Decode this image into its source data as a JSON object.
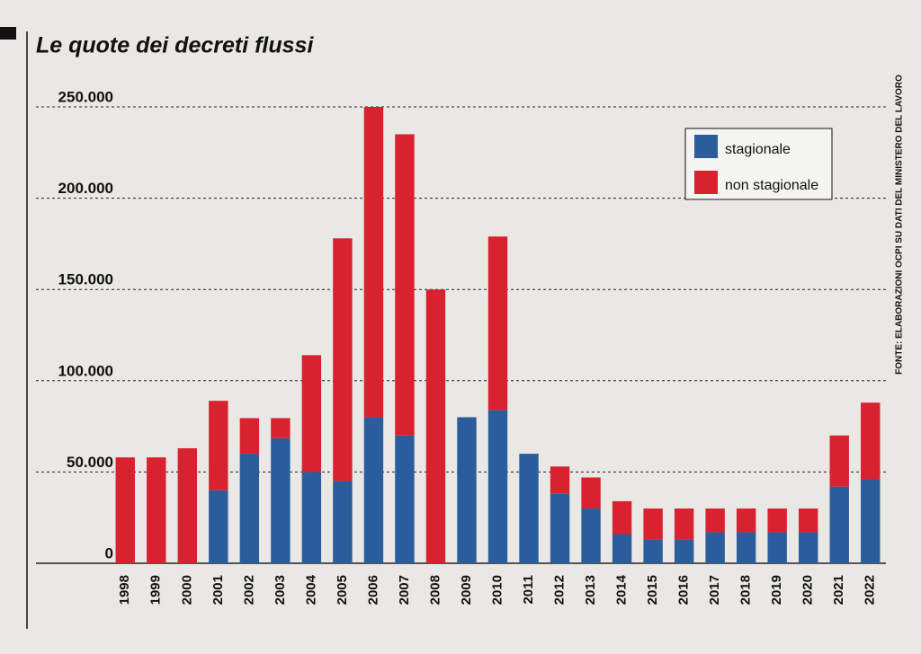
{
  "chart_data": {
    "type": "stacked_bar",
    "title": "Le quote dei decreti flussi",
    "source": "FONTE: ELABORAZIONI OCPI SU DATI DEL MINISTERO DEL LAVORO",
    "categories": [
      "1998",
      "1999",
      "2000",
      "2001",
      "2002",
      "2003",
      "2004",
      "2005",
      "2006",
      "2007",
      "2008",
      "2009",
      "2010",
      "2011",
      "2012",
      "2013",
      "2014",
      "2015",
      "2016",
      "2017",
      "2018",
      "2019",
      "2020",
      "2021",
      "2022"
    ],
    "series": [
      {
        "name": "stagionale",
        "color": "#2b5c9b",
        "values": [
          0,
          0,
          0,
          40000,
          60000,
          68500,
          50000,
          45000,
          80000,
          70000,
          0,
          80000,
          84000,
          60000,
          38000,
          30000,
          16000,
          13000,
          13000,
          17000,
          17000,
          17000,
          17000,
          42000,
          46000
        ]
      },
      {
        "name": "non stagionale",
        "color": "#d8222f",
        "values": [
          58000,
          58000,
          63000,
          49000,
          19500,
          11000,
          64000,
          133000,
          170000,
          165000,
          150000,
          0,
          95000,
          0,
          15000,
          17000,
          18000,
          17000,
          17000,
          13000,
          13000,
          13000,
          13000,
          28000,
          42000
        ]
      }
    ],
    "ylim": [
      0,
      250000
    ],
    "yticks": [
      0,
      {
        "value": 50000,
        "label": "50.000"
      },
      {
        "value": 100000,
        "label": "100.000"
      },
      {
        "value": 150000,
        "label": "150.000"
      },
      {
        "value": 200000,
        "label": "200.000"
      },
      {
        "value": 250000,
        "label": "250.000"
      }
    ],
    "grid": true,
    "legend": "upper right"
  }
}
